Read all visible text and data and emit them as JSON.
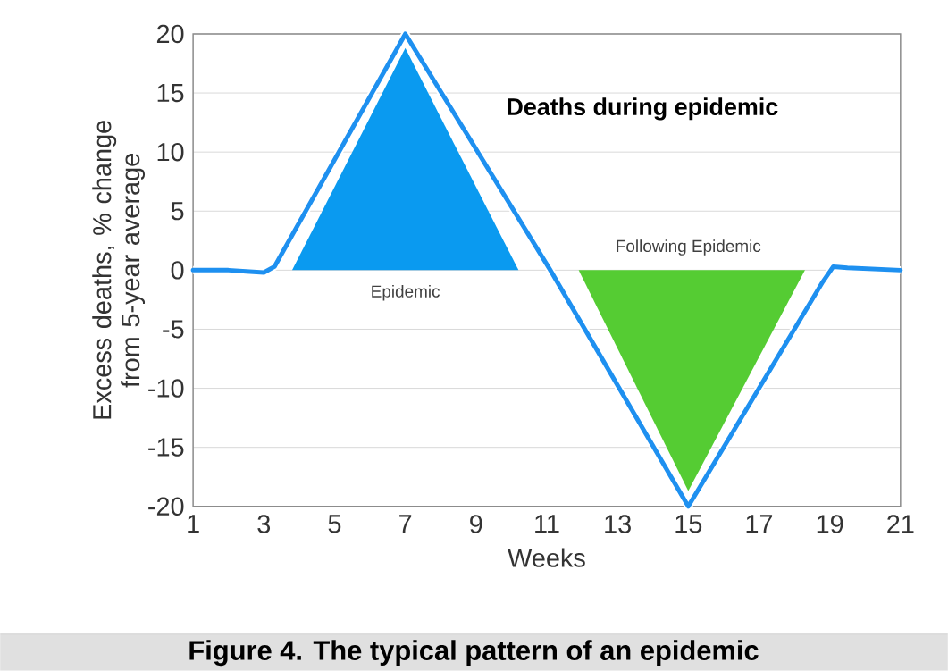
{
  "chart_data": {
    "type": "line",
    "title": "Deaths during epidemic",
    "xlabel": "Weeks",
    "ylabel": "Excess deaths, % change from 5-year average",
    "xlim": [
      1,
      21
    ],
    "ylim": [
      -20,
      20
    ],
    "xticks": [
      1,
      3,
      5,
      7,
      9,
      11,
      13,
      15,
      17,
      19,
      21
    ],
    "yticks": [
      -20,
      -15,
      -10,
      -5,
      0,
      5,
      10,
      15,
      20
    ],
    "grid": "y",
    "series": [
      {
        "type": "area",
        "color": "#0a9af0",
        "x": [
          3.8,
          7,
          10.2
        ],
        "values": [
          0,
          18.8,
          0
        ]
      },
      {
        "type": "area",
        "color": "#55cc33",
        "x": [
          11.9,
          15,
          18.3
        ],
        "values": [
          0,
          -18.7,
          0
        ]
      },
      {
        "color": "#1e90f0",
        "x": [
          1,
          2,
          2.5,
          3,
          3.3,
          7,
          11.1,
          15,
          18.8,
          19.1,
          19.5,
          21
        ],
        "values": [
          0,
          0,
          -0.1,
          -0.2,
          0.3,
          20,
          0,
          -20,
          -1,
          0.3,
          0.2,
          0
        ]
      }
    ],
    "annotations": [
      "Epidemic",
      "Following Epidemic",
      "Figure 4. The typical pattern of an epidemic"
    ]
  }
}
